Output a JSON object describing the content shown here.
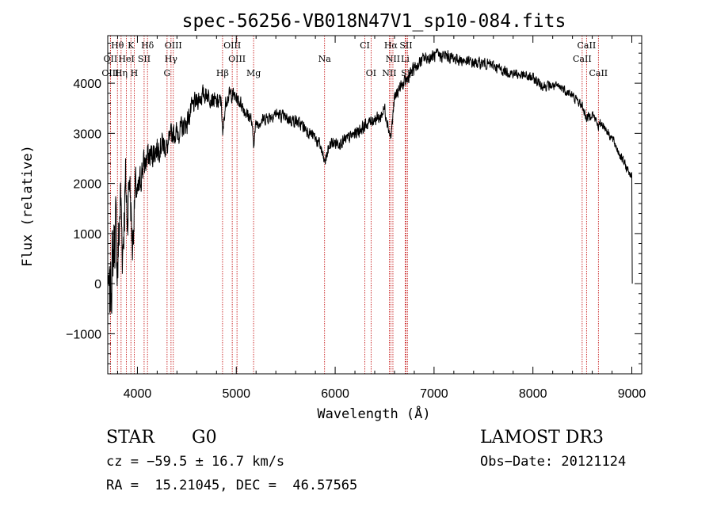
{
  "chart_data": {
    "type": "line",
    "title": "spec-56256-VB018N47V1_sp10-084.fits",
    "xlabel": "Wavelength (Å)",
    "ylabel": "Flux (relative)",
    "xlim": [
      3700,
      9100
    ],
    "ylim": [
      -1800,
      4950
    ],
    "xticks": [
      4000,
      5000,
      6000,
      7000,
      8000,
      9000
    ],
    "yticks": [
      -1000,
      0,
      1000,
      2000,
      3000,
      4000
    ],
    "xtick_labels": [
      "4000",
      "5000",
      "6000",
      "7000",
      "8000",
      "9000"
    ],
    "ytick_labels": [
      "−1000",
      "0",
      "1000",
      "2000",
      "3000",
      "4000"
    ],
    "series": [
      {
        "name": "flux",
        "color": "#000000",
        "noise_seed": 7,
        "x": [
          3700,
          3720,
          3750,
          3780,
          3800,
          3830,
          3850,
          3880,
          3900,
          3920,
          3950,
          3980,
          4000,
          4050,
          4100,
          4150,
          4200,
          4250,
          4300,
          4350,
          4400,
          4450,
          4500,
          4550,
          4600,
          4650,
          4700,
          4750,
          4800,
          4850,
          4862,
          4880,
          4900,
          4950,
          5000,
          5050,
          5100,
          5150,
          5175,
          5200,
          5300,
          5400,
          5500,
          5600,
          5700,
          5800,
          5850,
          5893,
          5950,
          6000,
          6100,
          6200,
          6300,
          6400,
          6450,
          6500,
          6563,
          6600,
          6650,
          6700,
          6750,
          6800,
          6850,
          6900,
          6950,
          7000,
          7100,
          7200,
          7300,
          7400,
          7500,
          7600,
          7700,
          7800,
          7900,
          8000,
          8100,
          8200,
          8300,
          8400,
          8498,
          8542,
          8600,
          8662,
          8700,
          8800,
          8900,
          8950,
          9000,
          9001,
          9005
        ],
        "y": [
          100,
          -300,
          500,
          1200,
          300,
          1800,
          600,
          2000,
          1300,
          2200,
          700,
          2000,
          1700,
          2300,
          2500,
          2600,
          2700,
          2800,
          2700,
          3000,
          3000,
          3100,
          3200,
          3500,
          3650,
          3750,
          3800,
          3700,
          3600,
          3650,
          2900,
          3400,
          3700,
          3800,
          3700,
          3600,
          3400,
          3300,
          2800,
          3200,
          3300,
          3400,
          3300,
          3250,
          3100,
          2900,
          2750,
          2400,
          2800,
          2800,
          2850,
          3000,
          3150,
          3300,
          3300,
          3500,
          2900,
          3700,
          3900,
          4000,
          4150,
          4300,
          4400,
          4500,
          4500,
          4550,
          4550,
          4500,
          4450,
          4400,
          4400,
          4350,
          4250,
          4200,
          4150,
          4100,
          3950,
          3950,
          3900,
          3750,
          3550,
          3300,
          3400,
          3150,
          3200,
          2900,
          2500,
          2300,
          2150,
          1600,
          0
        ],
        "noise": [
          0,
          600,
          700,
          600,
          650,
          550,
          550,
          500,
          450,
          400,
          350,
          300,
          300,
          280,
          260,
          240,
          240,
          220,
          200,
          200,
          200,
          190,
          190,
          180,
          170,
          170,
          160,
          150,
          150,
          140,
          100,
          140,
          140,
          140,
          130,
          120,
          120,
          120,
          100,
          110,
          110,
          110,
          110,
          110,
          110,
          110,
          110,
          100,
          110,
          110,
          110,
          110,
          110,
          110,
          110,
          120,
          100,
          110,
          110,
          110,
          110,
          110,
          110,
          110,
          110,
          110,
          110,
          110,
          100,
          100,
          90,
          90,
          90,
          90,
          90,
          90,
          90,
          80,
          80,
          80,
          80,
          80,
          80,
          80,
          80,
          80,
          80,
          80,
          60,
          0,
          0
        ]
      }
    ],
    "lines": [
      {
        "label": "Hθ",
        "x": 3798,
        "row": 1
      },
      {
        "label": "K",
        "x": 3934,
        "row": 1
      },
      {
        "label": "Hδ",
        "x": 4102,
        "row": 1
      },
      {
        "label": "OIII",
        "x": 4363,
        "row": 1
      },
      {
        "label": "OIII",
        "x": 4959,
        "row": 1
      },
      {
        "label": "CI",
        "x": 6300,
        "row": 1
      },
      {
        "label": "Hα",
        "x": 6563,
        "row": 1
      },
      {
        "label": "SII",
        "x": 6716,
        "row": 1
      },
      {
        "label": "CaII",
        "x": 8542,
        "row": 1
      },
      {
        "label": "OII",
        "x": 3727,
        "row": 2
      },
      {
        "label": "HeI",
        "x": 3889,
        "row": 2
      },
      {
        "label": "SII",
        "x": 4068,
        "row": 2
      },
      {
        "label": "Hγ",
        "x": 4340,
        "row": 2
      },
      {
        "label": "OIII",
        "x": 5007,
        "row": 2
      },
      {
        "label": "Na",
        "x": 5893,
        "row": 2
      },
      {
        "label": "NII",
        "x": 6584,
        "row": 2
      },
      {
        "label": "Li",
        "x": 6708,
        "row": 2
      },
      {
        "label": "CaII",
        "x": 8498,
        "row": 2
      },
      {
        "label": "OIII",
        "x": 3727,
        "row": 3
      },
      {
        "label": "Hη",
        "x": 3835,
        "row": 3
      },
      {
        "label": "H",
        "x": 3968,
        "row": 3
      },
      {
        "label": "G",
        "x": 4300,
        "row": 3
      },
      {
        "label": "Hβ",
        "x": 4861,
        "row": 3
      },
      {
        "label": "Mg",
        "x": 5175,
        "row": 3
      },
      {
        "label": "OI",
        "x": 6363,
        "row": 3
      },
      {
        "label": "NII",
        "x": 6548,
        "row": 3
      },
      {
        "label": "SII",
        "x": 6731,
        "row": 3
      },
      {
        "label": "CaII",
        "x": 8662,
        "row": 3
      }
    ],
    "line_color": "#c00000"
  },
  "info": {
    "class_label": "STAR",
    "subclass": "G0",
    "survey": "LAMOST DR3",
    "cz": "cz = −59.5 ± 16.7 km/s",
    "obs_date": "Obs−Date: 20121124",
    "radec": "RA =  15.21045, DEC =  46.57565"
  }
}
